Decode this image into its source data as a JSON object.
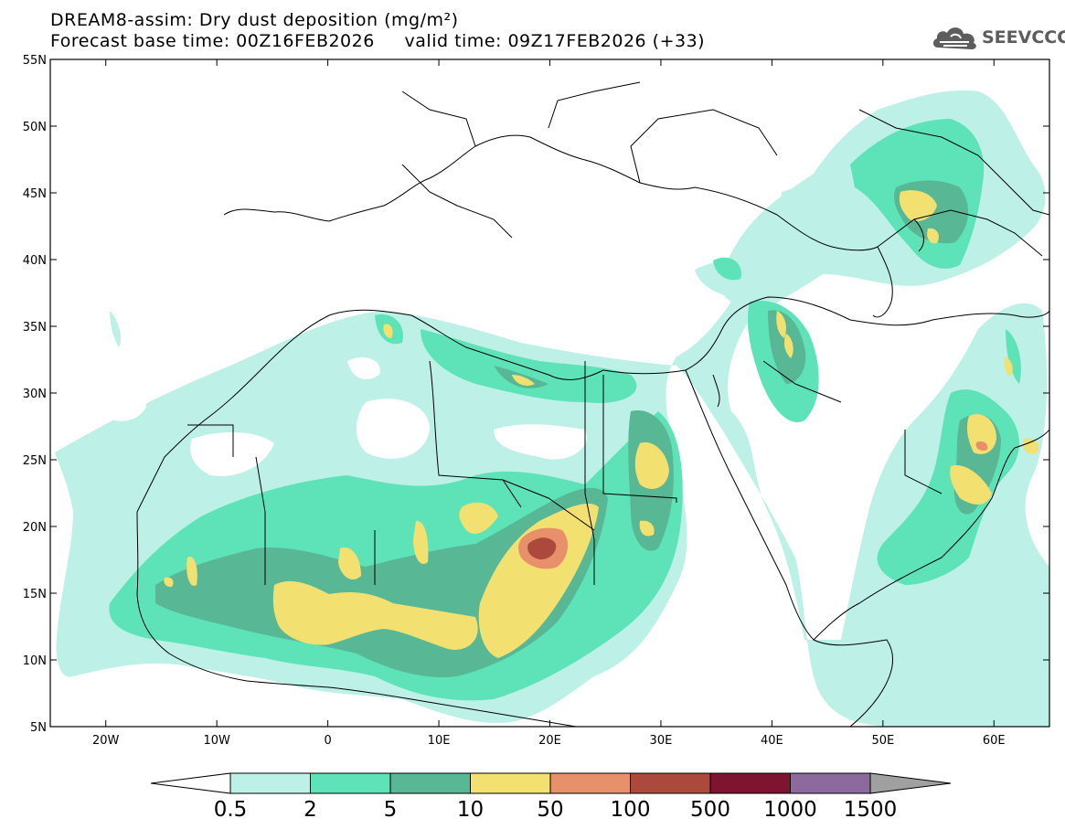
{
  "title": {
    "line1": "DREAM8-assim: Dry dust deposition (mg/m²)",
    "forecast_base": "Forecast base time: 00Z16FEB2026",
    "valid_time": "valid time: 09Z17FEB2026 (+33)"
  },
  "logo": {
    "text": "SEEVCCC",
    "icon": "cloud-icon",
    "color": "#5d5d5d"
  },
  "map": {
    "lon_range": [
      -25,
      65
    ],
    "lat_range": [
      5,
      55
    ],
    "lat_ticks": [
      {
        "value": 55,
        "label": "55N"
      },
      {
        "value": 50,
        "label": "50N"
      },
      {
        "value": 45,
        "label": "45N"
      },
      {
        "value": 40,
        "label": "40N"
      },
      {
        "value": 35,
        "label": "35N"
      },
      {
        "value": 30,
        "label": "30N"
      },
      {
        "value": 25,
        "label": "25N"
      },
      {
        "value": 20,
        "label": "20N"
      },
      {
        "value": 15,
        "label": "15N"
      },
      {
        "value": 10,
        "label": "10N"
      },
      {
        "value": 5,
        "label": "5N"
      }
    ],
    "lon_ticks": [
      {
        "value": -20,
        "label": "20W"
      },
      {
        "value": -10,
        "label": "10W"
      },
      {
        "value": 0,
        "label": "0"
      },
      {
        "value": 10,
        "label": "10E"
      },
      {
        "value": 20,
        "label": "20E"
      },
      {
        "value": 30,
        "label": "30E"
      },
      {
        "value": 40,
        "label": "40E"
      },
      {
        "value": 50,
        "label": "50E"
      },
      {
        "value": 60,
        "label": "60E"
      }
    ]
  },
  "colorbar": {
    "labels": [
      "0.5",
      "2",
      "5",
      "10",
      "50",
      "100",
      "500",
      "1000",
      "1500"
    ],
    "colors": [
      "#bdf0e6",
      "#5ee3b8",
      "#58b896",
      "#f2e070",
      "#e8906a",
      "#ab4a3c",
      "#7e1430",
      "#8c6a9e"
    ],
    "under_color": "#ffffff",
    "over_color": "#a0a0a0"
  },
  "colors": {
    "c1": "#bdf0e6",
    "c2": "#5ee3b8",
    "c3": "#58b896",
    "c4": "#f2e070",
    "c5": "#e8906a",
    "c6": "#ab4a3c"
  }
}
